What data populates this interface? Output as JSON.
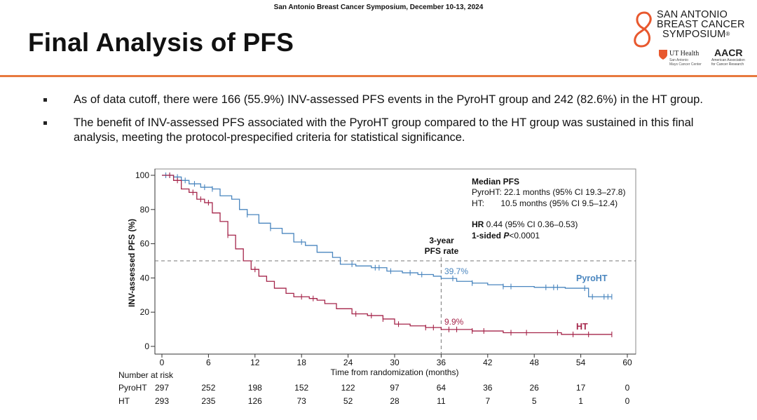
{
  "header": {
    "conference_line": "San Antonio Breast Cancer Symposium, December 10-13, 2024",
    "slide_title": "Final Analysis of PFS",
    "rule_color": "#e8793e"
  },
  "logo": {
    "line1": "SAN ANTONIO",
    "line2": "BREAST CANCER",
    "line3": "SYMPOSIUM",
    "reg_mark": "®",
    "partner1": "UT Health",
    "partner1_sub1": "San Antonio",
    "partner1_sub2": "Mays Cancer Center",
    "partner2": "AACR",
    "partner2_sub1": "American Association",
    "partner2_sub2": "for Cancer Research",
    "accent_color": "#e8582e"
  },
  "bullets": [
    "As of data cutoff, there were 166 (55.9%) INV-assessed PFS events in the PyroHT group and 242 (82.6%) in the HT group.",
    "The benefit of INV-assessed PFS associated with the PyroHT group compared to the HT group was sustained in this final analysis, meeting the protocol-prespecified criteria for statistical significance."
  ],
  "chart_data": {
    "type": "line",
    "step": true,
    "ylabel": "INV-assessed PFS (%)",
    "xlabel": "Time from randomization (months)",
    "xlim": [
      0,
      60
    ],
    "ylim": [
      0,
      100
    ],
    "xticks": [
      0,
      6,
      12,
      18,
      24,
      30,
      36,
      42,
      48,
      54,
      60
    ],
    "yticks": [
      0,
      20,
      40,
      60,
      80,
      100
    ],
    "reference_line": {
      "y": 50,
      "style": "dashed"
    },
    "vertical_marker": {
      "x": 36,
      "label_line1": "3-year",
      "label_line2": "PFS rate",
      "style": "dashed"
    },
    "series": [
      {
        "name": "PyroHT",
        "color": "#4a86bf",
        "rate_label": "39.7%",
        "points": [
          [
            0,
            100
          ],
          [
            1.5,
            99
          ],
          [
            2.5,
            97
          ],
          [
            3.5,
            95
          ],
          [
            5,
            93
          ],
          [
            6.5,
            92
          ],
          [
            7.5,
            88
          ],
          [
            9,
            86
          ],
          [
            10,
            80
          ],
          [
            11,
            77
          ],
          [
            12.5,
            72
          ],
          [
            14,
            69
          ],
          [
            15.5,
            66
          ],
          [
            17,
            61
          ],
          [
            18.5,
            59
          ],
          [
            20,
            55
          ],
          [
            22,
            52
          ],
          [
            23,
            48
          ],
          [
            25,
            47
          ],
          [
            27,
            46
          ],
          [
            29,
            44
          ],
          [
            31,
            43
          ],
          [
            33,
            42
          ],
          [
            35,
            41
          ],
          [
            36,
            39.7
          ],
          [
            38,
            38
          ],
          [
            40,
            37
          ],
          [
            42,
            36
          ],
          [
            44,
            35
          ],
          [
            48,
            34.5
          ],
          [
            52,
            34
          ],
          [
            55,
            29
          ],
          [
            58,
            29
          ]
        ],
        "censor_x": [
          0.5,
          1,
          2,
          3,
          4.2,
          5.5,
          6.5,
          11,
          14,
          18,
          24.5,
          27.5,
          28,
          29.5,
          32,
          33.5,
          37.5,
          40,
          44,
          45,
          49.5,
          50.5,
          51,
          54.5,
          55.5,
          57,
          57.5,
          58
        ]
      },
      {
        "name": "HT",
        "color": "#a5254a",
        "rate_label": "9.9%",
        "points": [
          [
            0,
            100
          ],
          [
            1.5,
            97
          ],
          [
            2.5,
            92
          ],
          [
            3.5,
            90
          ],
          [
            4.5,
            86
          ],
          [
            5.5,
            84
          ],
          [
            6.5,
            78
          ],
          [
            7.5,
            73
          ],
          [
            8.5,
            65
          ],
          [
            9.5,
            57
          ],
          [
            10.5,
            50
          ],
          [
            11.5,
            45
          ],
          [
            12.5,
            41
          ],
          [
            13.5,
            38
          ],
          [
            14.5,
            34
          ],
          [
            16,
            31
          ],
          [
            17,
            29
          ],
          [
            19,
            28
          ],
          [
            20,
            27
          ],
          [
            21,
            25
          ],
          [
            22.5,
            22
          ],
          [
            24.5,
            19
          ],
          [
            26.5,
            18
          ],
          [
            28.5,
            16
          ],
          [
            30,
            13
          ],
          [
            32,
            12
          ],
          [
            34,
            11
          ],
          [
            36,
            9.9
          ],
          [
            40,
            9
          ],
          [
            44,
            8
          ],
          [
            50,
            8
          ],
          [
            51.5,
            7
          ],
          [
            54,
            7
          ],
          [
            58,
            7
          ]
        ],
        "censor_x": [
          1,
          2,
          4,
          5,
          6,
          8.5,
          12,
          18,
          19.5,
          25,
          27,
          28.5,
          30.5,
          34,
          35,
          37,
          38,
          40,
          41.5,
          45,
          47,
          51,
          53,
          55,
          58
        ]
      }
    ],
    "legend_labels": [
      "PyroHT",
      "HT"
    ],
    "annotation": {
      "heading": "Median PFS",
      "pyro_line": "PyroHT: 22.1 months (95% CI 19.3–27.8)",
      "ht_line": "HT:       10.5 months (95% CI 9.5–12.4)",
      "hr_label": "HR",
      "hr_value": " 0.44 (95% CI 0.36–0.53)",
      "sided_label": "1-sided ",
      "p_label": "P",
      "p_value": "<0.0001"
    },
    "risk_table": {
      "heading": "Number at risk",
      "rows": [
        {
          "label": "PyroHT",
          "values": [
            297,
            252,
            198,
            152,
            122,
            97,
            64,
            36,
            26,
            17,
            0
          ]
        },
        {
          "label": "HT",
          "values": [
            293,
            235,
            126,
            73,
            52,
            28,
            11,
            7,
            5,
            1,
            0
          ]
        }
      ]
    }
  }
}
